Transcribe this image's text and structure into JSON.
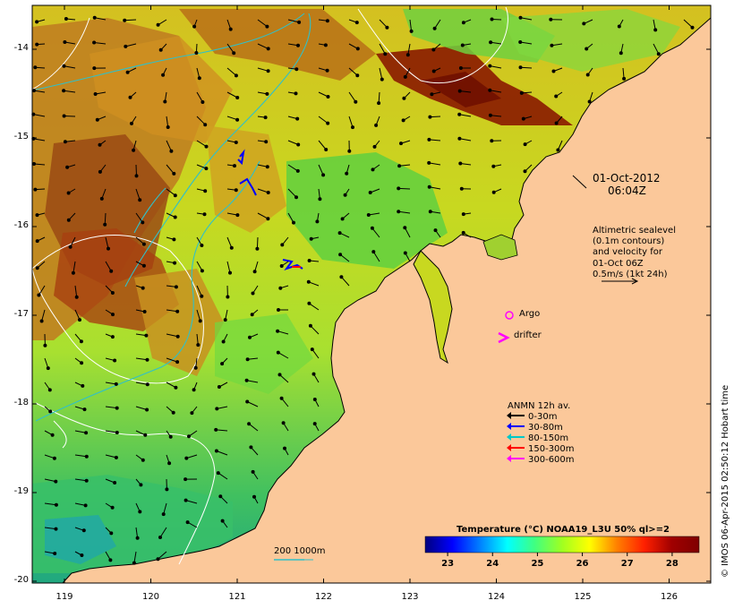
{
  "date_line": "01-Oct-2012",
  "time_line": "06:04Z",
  "altimetry": {
    "lines": [
      "Altimetric sealevel",
      "(0.1m contours)",
      "and velocity for",
      "01-Oct 06Z",
      "0.5m/s (1kt 24h)"
    ]
  },
  "markers": {
    "argo_label": "Argo",
    "drifter_label": "drifter"
  },
  "anmn_legend": {
    "title": "ANMN 12h av.",
    "items": [
      {
        "label": "0-30m",
        "color": "#000000"
      },
      {
        "label": "30-80m",
        "color": "#0000ff"
      },
      {
        "label": "80-150m",
        "color": "#00c8c8"
      },
      {
        "label": "150-300m",
        "color": "#ff0000"
      },
      {
        "label": "300-600m",
        "color": "#ff00ff"
      }
    ]
  },
  "isobath_label": "200  1000m",
  "colorbar": {
    "title": "Temperature (°C) NOAA19_L3U 50% ql>=2",
    "min": 22.5,
    "max": 28.6,
    "ticks": [
      "23",
      "24",
      "25",
      "26",
      "27",
      "28"
    ],
    "stops": [
      "#00007f",
      "#0000ff",
      "#0080ff",
      "#00ffff",
      "#40ff80",
      "#a0ff20",
      "#ffff00",
      "#ff8000",
      "#ff2000",
      "#a00000",
      "#7f0000"
    ]
  },
  "latitude_labels": [
    "-14",
    "-15",
    "-16",
    "-17",
    "-18",
    "-19",
    "-20"
  ],
  "longitude_labels": [
    "119",
    "120",
    "121",
    "122",
    "123",
    "124",
    "125",
    "126"
  ],
  "credit": "© IMOS 06-Apr-2015 02:50:12 Hobart time",
  "colors": {
    "land": "#fbc89a",
    "warm": "#b06010",
    "hot": "#8a1800",
    "mid": "#e8d000",
    "cool": "#50d050",
    "coolest": "#20b8a0"
  }
}
